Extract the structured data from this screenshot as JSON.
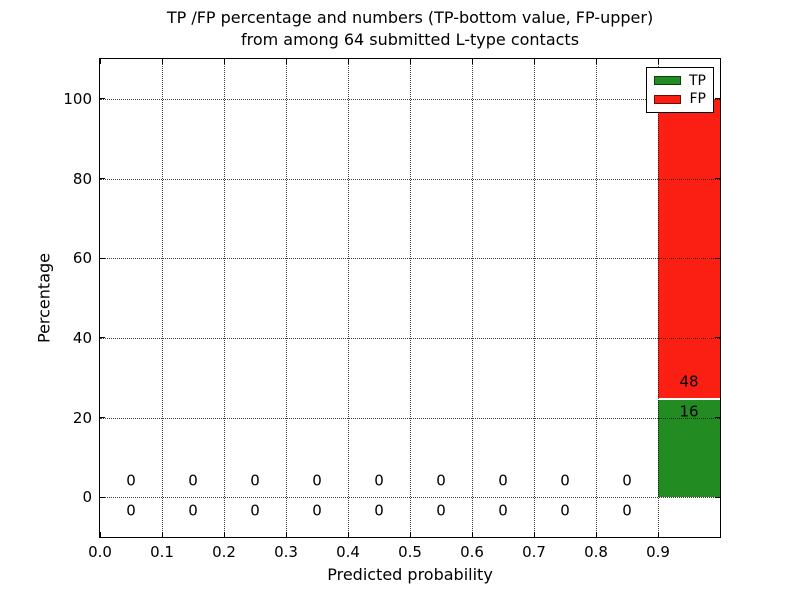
{
  "chart_data": {
    "type": "bar",
    "stacked": true,
    "title": "TP /FP percentage and numbers (TP-bottom value, FP-upper)\nfrom among 64 submitted L-type contacts",
    "xlabel": "Predicted probability",
    "ylabel": "Percentage",
    "xlim": [
      0.0,
      1.0
    ],
    "ylim": [
      -10,
      110
    ],
    "grid": true,
    "legend_position": "upper right",
    "total_contacts": 64,
    "xticks": {
      "values": [
        0.0,
        0.1,
        0.2,
        0.3,
        0.4,
        0.5,
        0.6,
        0.7,
        0.8,
        0.9
      ],
      "labels": [
        "0.0",
        "0.1",
        "0.2",
        "0.3",
        "0.4",
        "0.5",
        "0.6",
        "0.7",
        "0.8",
        "0.9"
      ]
    },
    "yticks": {
      "values": [
        0,
        20,
        40,
        60,
        80,
        100
      ],
      "labels": [
        "0",
        "20",
        "40",
        "60",
        "80",
        "100"
      ]
    },
    "series": [
      {
        "name": "TP",
        "color": "#228b22"
      },
      {
        "name": "FP",
        "color": "#fb1e13"
      }
    ],
    "bins": [
      {
        "x0": 0.0,
        "x1": 0.1,
        "tp_count": 0,
        "fp_count": 0,
        "tp_pct": 0,
        "fp_pct": 0
      },
      {
        "x0": 0.1,
        "x1": 0.2,
        "tp_count": 0,
        "fp_count": 0,
        "tp_pct": 0,
        "fp_pct": 0
      },
      {
        "x0": 0.2,
        "x1": 0.3,
        "tp_count": 0,
        "fp_count": 0,
        "tp_pct": 0,
        "fp_pct": 0
      },
      {
        "x0": 0.3,
        "x1": 0.4,
        "tp_count": 0,
        "fp_count": 0,
        "tp_pct": 0,
        "fp_pct": 0
      },
      {
        "x0": 0.4,
        "x1": 0.5,
        "tp_count": 0,
        "fp_count": 0,
        "tp_pct": 0,
        "fp_pct": 0
      },
      {
        "x0": 0.5,
        "x1": 0.6,
        "tp_count": 0,
        "fp_count": 0,
        "tp_pct": 0,
        "fp_pct": 0
      },
      {
        "x0": 0.6,
        "x1": 0.7,
        "tp_count": 0,
        "fp_count": 0,
        "tp_pct": 0,
        "fp_pct": 0
      },
      {
        "x0": 0.7,
        "x1": 0.8,
        "tp_count": 0,
        "fp_count": 0,
        "tp_pct": 0,
        "fp_pct": 0
      },
      {
        "x0": 0.8,
        "x1": 0.9,
        "tp_count": 0,
        "fp_count": 0,
        "tp_pct": 0,
        "fp_pct": 0
      },
      {
        "x0": 0.9,
        "x1": 1.0,
        "tp_count": 16,
        "fp_count": 48,
        "tp_pct": 25,
        "fp_pct": 75
      }
    ]
  }
}
